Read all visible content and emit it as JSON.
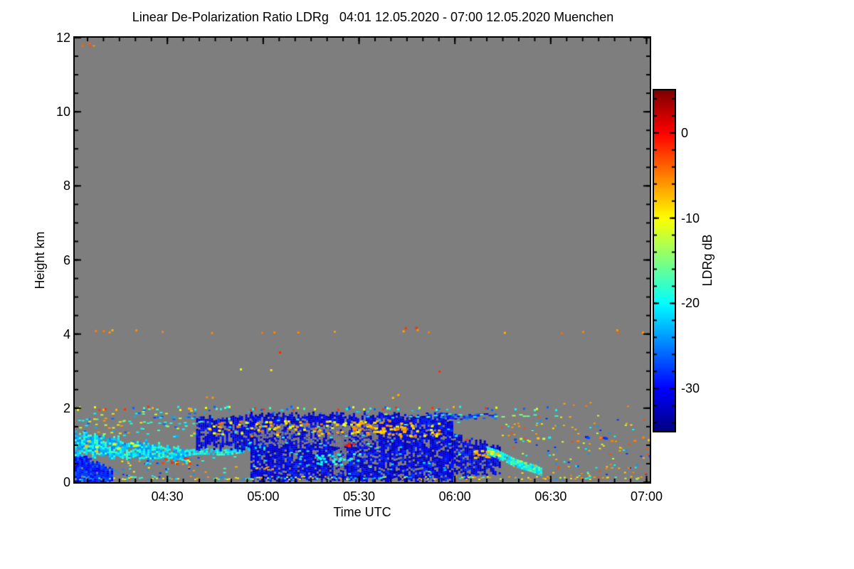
{
  "title": "Linear De-Polarization Ratio LDRg   04:01 12.05.2020 - 07:00 12.05.2020 Muenchen",
  "chart_data": {
    "type": "heatmap",
    "title": "Linear De-Polarization Ratio LDRg   04:01 12.05.2020 - 07:00 12.05.2020 Muenchen",
    "site": "Muenchen",
    "time_start": "04:01 12.05.2020",
    "time_end": "07:00 12.05.2020",
    "xlabel": "Time UTC",
    "ylabel": "Height km",
    "x_range_minutes_after_0400": [
      1,
      181
    ],
    "x_ticks": [
      {
        "label": "04:30",
        "minute": 30
      },
      {
        "label": "05:00",
        "minute": 60
      },
      {
        "label": "05:30",
        "minute": 90
      },
      {
        "label": "06:00",
        "minute": 120
      },
      {
        "label": "06:30",
        "minute": 150
      },
      {
        "label": "07:00",
        "minute": 180
      }
    ],
    "x_minor_step_min": 5,
    "ylim": [
      0,
      12
    ],
    "y_ticks": [
      {
        "label": "0",
        "km": 0
      },
      {
        "label": "2",
        "km": 2
      },
      {
        "label": "4",
        "km": 4
      },
      {
        "label": "6",
        "km": 6
      },
      {
        "label": "8",
        "km": 8
      },
      {
        "label": "10",
        "km": 10
      },
      {
        "label": "12",
        "km": 12
      }
    ],
    "y_minor_step": 0.5,
    "grid": false,
    "plot_bg": "#7e7e7e",
    "frame_color": "#000000",
    "no_data_color": "#7e7e7e",
    "colorbar": {
      "label": "LDRg dB",
      "min": -35,
      "max": 5,
      "ticks": [
        {
          "label": "0",
          "value": 0
        },
        {
          "label": "-10",
          "value": -10
        },
        {
          "label": "-20",
          "value": -20
        },
        {
          "label": "-30",
          "value": -30
        }
      ],
      "minor_step": 2,
      "colormap": "jet",
      "position": "right"
    },
    "seed": 12,
    "features": [
      {
        "name": "corner-specks",
        "type": "specks",
        "t": [
          1.5,
          7
        ],
        "h": [
          11.78,
          11.92
        ],
        "count": 6,
        "v": [
          -6,
          -3
        ],
        "cell": [
          3,
          2
        ]
      },
      {
        "name": "row-4km-orange",
        "type": "specks",
        "t": [
          2,
          179
        ],
        "h": [
          4.04,
          4.16
        ],
        "count": 20,
        "v": [
          -7,
          -3
        ],
        "cell": [
          3,
          3
        ]
      },
      {
        "name": "row-4km-red",
        "type": "specks",
        "t": [
          100,
          130
        ],
        "h": [
          4.08,
          4.2
        ],
        "count": 2,
        "v": [
          -2,
          -0.5
        ],
        "cell": [
          3,
          3
        ]
      },
      {
        "name": "speck-3p5km-red",
        "type": "specks",
        "t": [
          60,
          70
        ],
        "h": [
          3.5,
          3.6
        ],
        "count": 1,
        "v": [
          -2,
          -1
        ],
        "cell": [
          3,
          3
        ]
      },
      {
        "name": "specks-3km-yellow",
        "type": "specks",
        "t": [
          46,
          63
        ],
        "h": [
          3.0,
          3.1
        ],
        "count": 2,
        "v": [
          -11,
          -9
        ],
        "cell": [
          3,
          3
        ]
      },
      {
        "name": "specks-2p3km",
        "type": "specks",
        "t": [
          40,
          44
        ],
        "h": [
          2.3,
          2.4
        ],
        "count": 2,
        "v": [
          -7,
          -5
        ],
        "cell": [
          3,
          3
        ]
      },
      {
        "name": "specks-2p3km-b",
        "type": "specks",
        "t": [
          99,
          104
        ],
        "h": [
          2.3,
          2.4
        ],
        "count": 2,
        "v": [
          -8,
          -6
        ],
        "cell": [
          3,
          3
        ]
      },
      {
        "name": "speck-3km-red",
        "type": "specks",
        "t": [
          114,
          118
        ],
        "h": [
          3.0,
          3.06
        ],
        "count": 1,
        "v": [
          -2,
          -1
        ],
        "cell": [
          3,
          3
        ]
      },
      {
        "name": "specks-right-2km",
        "type": "specks",
        "t": [
          150,
          179
        ],
        "h": [
          2.05,
          2.2
        ],
        "count": 5,
        "v": [
          -7,
          -4
        ],
        "cell": [
          3,
          2
        ]
      },
      {
        "name": "left-blue-low",
        "type": "band",
        "t": [
          1,
          13
        ],
        "top": [
          0.8,
          0.35
        ],
        "bot": [
          0.04,
          0.04
        ],
        "density": 0.95,
        "v": [
          -31,
          -26
        ],
        "cell": [
          3,
          3
        ],
        "jitter": 0.05
      },
      {
        "name": "left-cyan-band",
        "type": "band",
        "t": [
          1,
          36
        ],
        "top": [
          1.38,
          0.92
        ],
        "bot": [
          0.8,
          0.58
        ],
        "density": 0.9,
        "v": [
          -25,
          -17
        ],
        "cell": [
          3,
          3
        ],
        "jitter": 0.08
      },
      {
        "name": "band-yellow-patches",
        "type": "specks",
        "t": [
          3,
          22
        ],
        "h": [
          0.75,
          1.2
        ],
        "count": 9,
        "v": [
          -11,
          -7
        ],
        "cell": [
          5,
          3
        ]
      },
      {
        "name": "mid-cyan-streak",
        "type": "streak",
        "t": [
          34,
          62
        ],
        "hA": 0.8,
        "hB": 1.0,
        "thick": 0.16,
        "density": 0.85,
        "v": [
          -23,
          -17
        ],
        "cell": [
          3,
          3
        ],
        "wiggle": 0.04
      },
      {
        "name": "left-upper-specks",
        "type": "specks",
        "t": [
          2,
          40
        ],
        "h": [
          1.25,
          2.0
        ],
        "count": 80,
        "values": [
          -20,
          -23,
          -9,
          -6,
          -26,
          -12,
          -17
        ],
        "cell": [
          4,
          2
        ]
      },
      {
        "name": "hline-1p6",
        "type": "hline",
        "h": 1.62,
        "t": [
          12,
          44
        ],
        "density": 0.4,
        "v": [
          -21,
          -17
        ],
        "jitter": 0.03,
        "cell": [
          4,
          2
        ]
      },
      {
        "name": "hline-1p8",
        "type": "hline",
        "h": 1.78,
        "t": [
          14,
          44
        ],
        "density": 0.35,
        "v": [
          -28,
          -22
        ],
        "jitter": 0.03,
        "cell": [
          4,
          2
        ]
      },
      {
        "name": "left-low-specks",
        "type": "specks",
        "t": [
          12,
          42
        ],
        "h": [
          0.15,
          0.68
        ],
        "count": 50,
        "values": [
          -28,
          -24,
          -20,
          -10,
          -6
        ],
        "cell": [
          3,
          2
        ]
      },
      {
        "name": "red-cluster",
        "type": "specks",
        "t": [
          28,
          37
        ],
        "h": [
          0.52,
          0.68
        ],
        "count": 10,
        "v": [
          -3,
          -0.5
        ],
        "cell": [
          4,
          3
        ]
      },
      {
        "name": "cloud-a",
        "type": "band",
        "t": [
          39,
          57
        ],
        "top": [
          1.8,
          1.86
        ],
        "bot": [
          1.0,
          0.95
        ],
        "density": 0.72,
        "v": [
          -34,
          -28
        ],
        "cell": [
          3,
          3
        ],
        "jitter": 0.1
      },
      {
        "name": "cloud-b",
        "type": "band",
        "t": [
          56,
          119
        ],
        "top": [
          1.86,
          1.86
        ],
        "bot": [
          0.1,
          0.1
        ],
        "density": 0.82,
        "v": [
          -34,
          -28
        ],
        "cell": [
          3,
          3
        ],
        "jitter": 0.08
      },
      {
        "name": "cloud-tail",
        "type": "band",
        "t": [
          119,
          134
        ],
        "top": [
          1.3,
          0.95
        ],
        "bot": [
          0.18,
          0.32
        ],
        "density": 0.72,
        "v": [
          -34,
          -28
        ],
        "cell": [
          3,
          3
        ],
        "jitter": 0.1
      },
      {
        "name": "hole-1",
        "type": "erase",
        "t": [
          57,
          66
        ],
        "bot": [
          1.05,
          1.05
        ],
        "top": [
          1.55,
          1.55
        ],
        "density": 0.55,
        "cell": [
          3,
          3
        ],
        "jitter": 0.05
      },
      {
        "name": "hole-2",
        "type": "erase",
        "t": [
          66,
          79
        ],
        "bot": [
          1.15,
          1.15
        ],
        "top": [
          1.6,
          1.6
        ],
        "density": 0.45,
        "cell": [
          3,
          3
        ],
        "jitter": 0.05
      },
      {
        "name": "hole-3",
        "type": "erase",
        "t": [
          82,
          86
        ],
        "bot": [
          0.25,
          0.25
        ],
        "top": [
          1.6,
          1.6
        ],
        "density": 0.7,
        "cell": [
          3,
          3
        ],
        "jitter": 0.05
      },
      {
        "name": "hole-4",
        "type": "erase",
        "t": [
          80,
          96
        ],
        "bot": [
          1.05,
          1.05
        ],
        "top": [
          1.62,
          1.62
        ],
        "density": 0.5,
        "cell": [
          3,
          3
        ],
        "jitter": 0.05
      },
      {
        "name": "cloud-cyan-specks",
        "type": "specks",
        "t": [
          40,
          122
        ],
        "h": [
          0.2,
          1.8
        ],
        "count": 70,
        "v": [
          -22,
          -17
        ],
        "cell": [
          4,
          2
        ]
      },
      {
        "name": "cloud-warm-layer",
        "type": "specks",
        "t": [
          42,
          115
        ],
        "h": [
          1.25,
          1.68
        ],
        "count": 120,
        "v": [
          -12,
          -4
        ],
        "cell": [
          4,
          3
        ]
      },
      {
        "name": "warm-cluster",
        "type": "specks",
        "t": [
          86,
          104
        ],
        "h": [
          1.35,
          1.64
        ],
        "count": 35,
        "v": [
          -10,
          -5
        ],
        "cell": [
          5,
          3
        ]
      },
      {
        "name": "orange-row-low",
        "type": "specks",
        "t": [
          48,
          64
        ],
        "h": [
          0.35,
          0.45
        ],
        "count": 8,
        "v": [
          -8,
          -5
        ],
        "cell": [
          4,
          2
        ]
      },
      {
        "name": "red-dash-mid",
        "type": "specks",
        "t": [
          84,
          88
        ],
        "h": [
          1.0,
          1.1
        ],
        "count": 5,
        "v": [
          -2,
          -0.5
        ],
        "cell": [
          4,
          3
        ]
      },
      {
        "name": "cyan-patch-mid",
        "type": "specks",
        "t": [
          76,
          90
        ],
        "h": [
          0.5,
          0.8
        ],
        "count": 28,
        "v": [
          -21,
          -17
        ],
        "cell": [
          4,
          3
        ]
      },
      {
        "name": "above-cloud-specks",
        "type": "specks",
        "t": [
          40,
          120
        ],
        "h": [
          1.88,
          2.0
        ],
        "count": 20,
        "v": [
          -27,
          -20
        ],
        "cell": [
          3,
          2
        ]
      },
      {
        "name": "upper-blue-streak",
        "type": "streak",
        "t": [
          110,
          133
        ],
        "hA": 1.82,
        "hB": 1.78,
        "thick": 0.12,
        "density": 0.5,
        "v": [
          -31,
          -24
        ],
        "cell": [
          4,
          2
        ],
        "wiggle": 0.02
      },
      {
        "name": "green-dash-line",
        "type": "hline",
        "h": 1.82,
        "t": [
          90,
          152
        ],
        "density": 0.32,
        "values": [
          -18,
          -16,
          -20,
          -15,
          -13
        ],
        "jitter": 0.04,
        "cell": [
          5,
          2
        ]
      },
      {
        "name": "right-cyan-descend",
        "type": "streak",
        "t": [
          130,
          147
        ],
        "hA": 0.88,
        "hB": 0.3,
        "thick": 0.2,
        "density": 0.95,
        "v": [
          -22,
          -16
        ],
        "cell": [
          3,
          3
        ],
        "wiggle": 0.02
      },
      {
        "name": "orange-dash-right",
        "type": "specks",
        "t": [
          124,
          134
        ],
        "h": [
          0.68,
          0.9
        ],
        "count": 16,
        "v": [
          -11,
          -6
        ],
        "cell": [
          5,
          3
        ]
      },
      {
        "name": "right-hline-1p2",
        "type": "hline",
        "h": 1.18,
        "t": [
          118,
          181
        ],
        "density": 0.22,
        "values": [
          -8,
          -5,
          -2,
          -12,
          -27,
          -20
        ],
        "jitter": 0.07,
        "cell": [
          4,
          3
        ]
      },
      {
        "name": "blue-dash-right",
        "type": "specks",
        "t": [
          160,
          167
        ],
        "h": [
          1.15,
          1.25
        ],
        "count": 4,
        "v": [
          -29,
          -26
        ],
        "cell": [
          5,
          3
        ]
      },
      {
        "name": "right-specks",
        "type": "specks",
        "t": [
          134,
          181
        ],
        "h": [
          0.08,
          1.85
        ],
        "count": 120,
        "values": [
          -9,
          -6,
          -12,
          -20,
          -3,
          -28,
          -24,
          -7
        ],
        "cell": [
          3,
          2
        ]
      },
      {
        "name": "right-low-specks",
        "type": "specks",
        "t": [
          150,
          181
        ],
        "h": [
          0.1,
          0.5
        ],
        "count": 25,
        "values": [
          -8,
          -5,
          -20,
          -3
        ],
        "cell": [
          3,
          2
        ]
      },
      {
        "name": "line-2km",
        "type": "hline",
        "h": 2.02,
        "t": [
          1,
          152
        ],
        "density": 0.3,
        "values": [
          -2,
          -20,
          -11,
          -17,
          -26,
          -7
        ],
        "jitter": 0.05,
        "cell": [
          3,
          3
        ]
      },
      {
        "name": "bottom-line",
        "type": "hline",
        "h": 0.13,
        "t": [
          1,
          158
        ],
        "density": 0.55,
        "values": [
          -21,
          -18,
          -9,
          -6,
          -24,
          -12
        ],
        "jitter": 0.04,
        "cell": [
          3,
          2
        ]
      },
      {
        "name": "bottom-line-tail",
        "type": "hline",
        "h": 0.13,
        "t": [
          158,
          181
        ],
        "density": 0.2,
        "values": [
          -18,
          -9,
          -6
        ],
        "jitter": 0.04,
        "cell": [
          3,
          2
        ]
      }
    ]
  }
}
